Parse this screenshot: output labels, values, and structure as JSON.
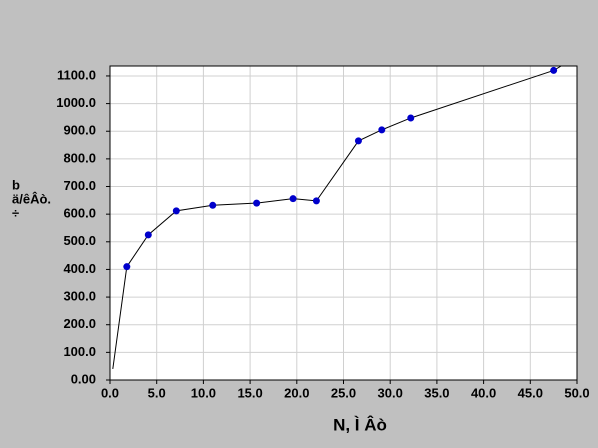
{
  "chart_data": {
    "type": "line",
    "x_label": "N, Ì  Âò",
    "y_label": [
      "b",
      "ä/êÂò.",
      "÷"
    ],
    "xlim": [
      0,
      50
    ],
    "ylim": [
      0,
      1136
    ],
    "xticks": [
      {
        "value": 0,
        "label": "0.0"
      },
      {
        "value": 5,
        "label": "5.0"
      },
      {
        "value": 10,
        "label": "10.0"
      },
      {
        "value": 15,
        "label": "15.0"
      },
      {
        "value": 20,
        "label": "20.0"
      },
      {
        "value": 25,
        "label": "25.0"
      },
      {
        "value": 30,
        "label": "30.0"
      },
      {
        "value": 35,
        "label": "35.0"
      },
      {
        "value": 40,
        "label": "40.0"
      },
      {
        "value": 45,
        "label": "45.0"
      },
      {
        "value": 50,
        "label": "50.0"
      }
    ],
    "yticks": [
      {
        "value": 0,
        "label": "0.00"
      },
      {
        "value": 100,
        "label": "100.0"
      },
      {
        "value": 200,
        "label": "200.0"
      },
      {
        "value": 300,
        "label": "300.0"
      },
      {
        "value": 400,
        "label": "400.0"
      },
      {
        "value": 500,
        "label": "500.0"
      },
      {
        "value": 600,
        "label": "600.0"
      },
      {
        "value": 700,
        "label": "700.0"
      },
      {
        "value": 800,
        "label": "800.0"
      },
      {
        "value": 900,
        "label": "900.0"
      },
      {
        "value": 1000,
        "label": "1000.0"
      },
      {
        "value": 1100,
        "label": "1100.0"
      }
    ],
    "grid": true,
    "series": [
      {
        "color": "#000000",
        "marker": false,
        "x": [
          0.3,
          1.8,
          4.1,
          7.1,
          11,
          15.7,
          19.6,
          22.1,
          26.6,
          29.1,
          32.2,
          47.5,
          48.3
        ],
        "values": [
          40,
          410,
          525,
          612,
          632,
          640,
          656,
          648,
          865,
          905,
          948,
          1120,
          1136
        ]
      },
      {
        "color": "#0000cc",
        "marker": true,
        "x": [
          1.8,
          4.1,
          7.1,
          11,
          15.7,
          19.6,
          22.1,
          26.6,
          29.1,
          32.2,
          47.5
        ],
        "values": [
          410,
          525,
          612,
          632,
          640,
          656,
          648,
          865,
          905,
          948,
          1120
        ]
      }
    ]
  }
}
